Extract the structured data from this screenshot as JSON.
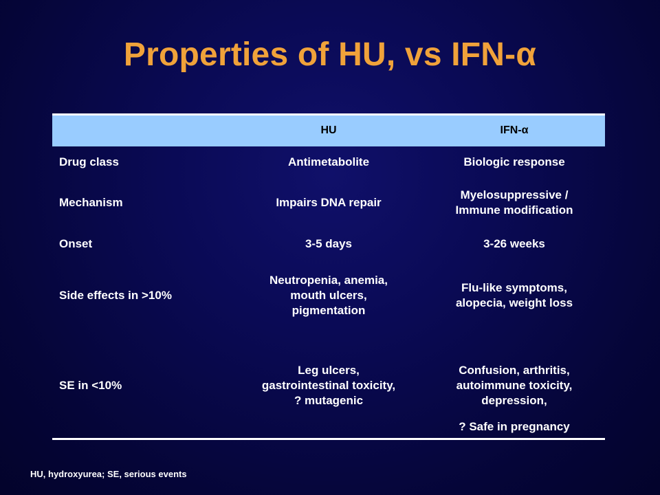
{
  "slide": {
    "title": "Properties of HU, vs IFN-α",
    "footnote": "HU, hydroxyurea; SE, serious events"
  },
  "table": {
    "headers": [
      "",
      "HU",
      "IFN-α"
    ],
    "rows": [
      {
        "label": "Drug class",
        "hu": "Antimetabolite",
        "ifn": "Biologic response"
      },
      {
        "label": "Mechanism",
        "hu": "Impairs DNA repair",
        "ifn_lines": [
          "Myelosuppressive /",
          "Immune modification"
        ]
      },
      {
        "label": "Onset",
        "hu": "3-5 days",
        "ifn": "3-26 weeks"
      },
      {
        "label": "Side effects in >10%",
        "hu_lines": [
          "Neutropenia, anemia,",
          "mouth ulcers,",
          "pigmentation"
        ],
        "ifn_lines": [
          "Flu-like symptoms,",
          "alopecia, weight loss"
        ]
      },
      {
        "label": "SE in <10%",
        "hu_lines": [
          "Leg ulcers,",
          "gastrointestinal toxicity,",
          "? mutagenic"
        ],
        "ifn_lines": [
          "Confusion, arthritis,",
          "autoimmune toxicity,",
          "depression,"
        ],
        "ifn_extra": "? Safe in pregnancy"
      }
    ]
  },
  "colors": {
    "background": "#0a0a55",
    "title": "#f0a23a",
    "header_band": "#99ccff",
    "text": "#ffffff"
  }
}
